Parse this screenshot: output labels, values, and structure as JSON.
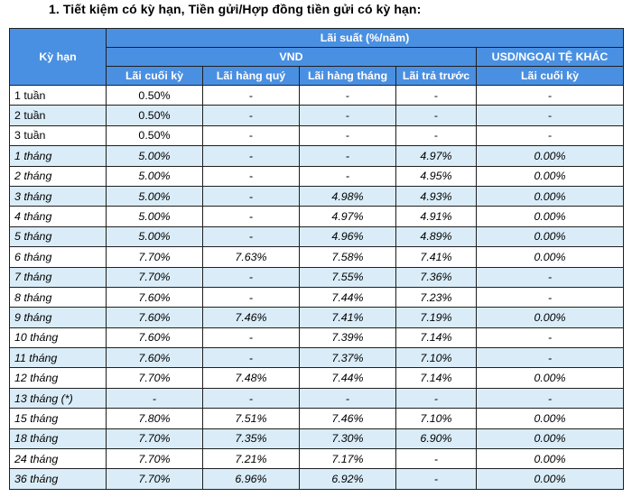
{
  "heading": "1. Tiết kiệm có kỳ hạn, Tiền gửi/Hợp đồng tiền gửi có kỳ hạn:",
  "table": {
    "header": {
      "term": "Kỳ hạn",
      "rate": "Lãi suất (%/năm)",
      "vnd": "VND",
      "foreign": "USD/NGOẠI TỆ KHÁC",
      "cols": [
        "Lãi cuối kỳ",
        "Lãi hàng quý",
        "Lãi hàng tháng",
        "Lãi trả trước",
        "Lãi cuối kỳ"
      ]
    },
    "rows": [
      {
        "term": "1 tuần",
        "italic": false,
        "values": [
          "0.50%",
          "-",
          "-",
          "-",
          "-"
        ]
      },
      {
        "term": "2 tuần",
        "italic": false,
        "values": [
          "0.50%",
          "-",
          "-",
          "-",
          "-"
        ]
      },
      {
        "term": "3 tuần",
        "italic": false,
        "values": [
          "0.50%",
          "-",
          "-",
          "-",
          "-"
        ]
      },
      {
        "term": "1 tháng",
        "italic": true,
        "values": [
          "5.00%",
          "-",
          "-",
          "4.97%",
          "0.00%"
        ]
      },
      {
        "term": "2 tháng",
        "italic": true,
        "values": [
          "5.00%",
          "-",
          "-",
          "4.95%",
          "0.00%"
        ]
      },
      {
        "term": "3 tháng",
        "italic": true,
        "values": [
          "5.00%",
          "-",
          "4.98%",
          "4.93%",
          "0.00%"
        ]
      },
      {
        "term": "4 tháng",
        "italic": true,
        "values": [
          "5.00%",
          "-",
          "4.97%",
          "4.91%",
          "0.00%"
        ]
      },
      {
        "term": "5 tháng",
        "italic": true,
        "values": [
          "5.00%",
          "-",
          "4.96%",
          "4.89%",
          "0.00%"
        ]
      },
      {
        "term": "6 tháng",
        "italic": true,
        "values": [
          "7.70%",
          "7.63%",
          "7.58%",
          "7.41%",
          "0.00%"
        ]
      },
      {
        "term": "7 tháng",
        "italic": true,
        "values": [
          "7.70%",
          "-",
          "7.55%",
          "7.36%",
          "-"
        ]
      },
      {
        "term": "8 tháng",
        "italic": true,
        "values": [
          "7.60%",
          "-",
          "7.44%",
          "7.23%",
          "-"
        ]
      },
      {
        "term": "9 tháng",
        "italic": true,
        "values": [
          "7.60%",
          "7.46%",
          "7.41%",
          "7.19%",
          "0.00%"
        ]
      },
      {
        "term": "10 tháng",
        "italic": true,
        "values": [
          "7.60%",
          "-",
          "7.39%",
          "7.14%",
          "-"
        ]
      },
      {
        "term": "11 tháng",
        "italic": true,
        "values": [
          "7.60%",
          "-",
          "7.37%",
          "7.10%",
          "-"
        ]
      },
      {
        "term": "12 tháng",
        "italic": true,
        "values": [
          "7.70%",
          "7.48%",
          "7.44%",
          "7.14%",
          "0.00%"
        ]
      },
      {
        "term": "13 tháng (*)",
        "italic": true,
        "values": [
          "-",
          "-",
          "-",
          "-",
          "-"
        ]
      },
      {
        "term": "15 tháng",
        "italic": true,
        "values": [
          "7.80%",
          "7.51%",
          "7.46%",
          "7.10%",
          "0.00%"
        ]
      },
      {
        "term": "18 tháng",
        "italic": true,
        "values": [
          "7.70%",
          "7.35%",
          "7.30%",
          "6.90%",
          "0.00%"
        ]
      },
      {
        "term": "24 tháng",
        "italic": true,
        "values": [
          "7.70%",
          "7.21%",
          "7.17%",
          "-",
          "0.00%"
        ]
      },
      {
        "term": "36 tháng",
        "italic": true,
        "values": [
          "7.70%",
          "6.96%",
          "6.92%",
          "-",
          "0.00%"
        ]
      }
    ]
  },
  "colors": {
    "header_bg": "#4a90e2",
    "header_text": "#ffffff",
    "row_alt_bg": "#d9ecf7",
    "border": "#1f1f1f"
  }
}
